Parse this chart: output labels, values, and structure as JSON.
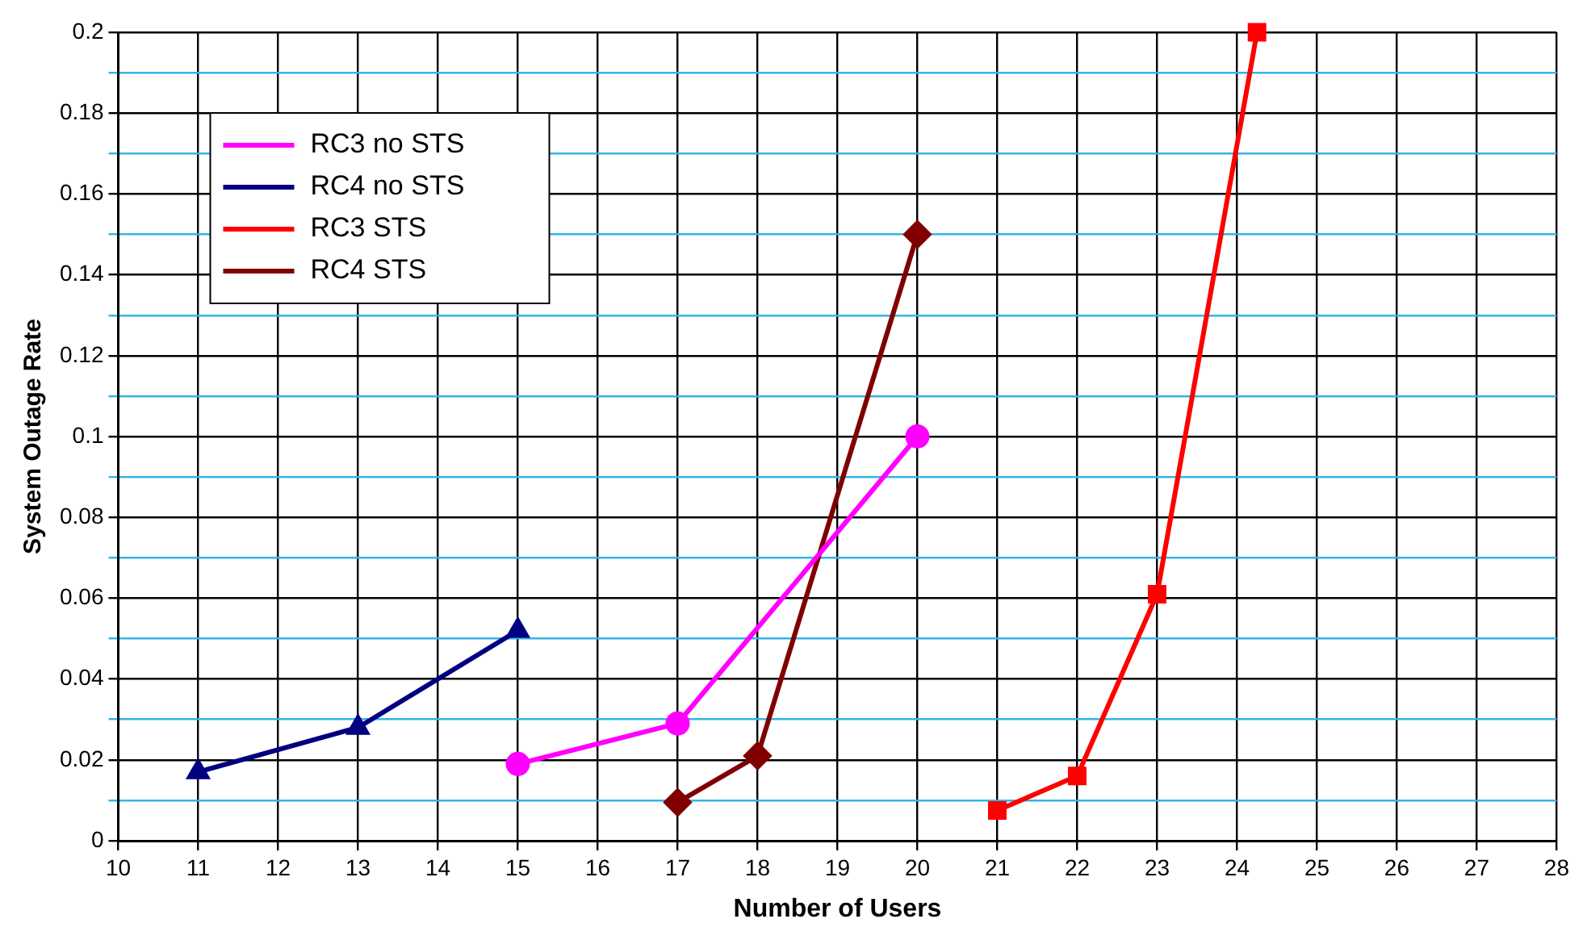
{
  "chart_data": {
    "type": "line",
    "xlabel": "Number of Users",
    "ylabel": "System Outage Rate",
    "xlim": [
      10,
      28
    ],
    "xticks": [
      10,
      11,
      12,
      13,
      14,
      15,
      16,
      17,
      18,
      19,
      20,
      21,
      22,
      23,
      24,
      25,
      26,
      27,
      28
    ],
    "ylim": [
      0,
      0.2
    ],
    "yticks": [
      0,
      {
        "value": 0.01,
        "label": null
      },
      0.02,
      {
        "value": 0.03,
        "label": null
      },
      0.04,
      {
        "value": 0.05,
        "label": null
      },
      0.06,
      {
        "value": 0.07,
        "label": null
      },
      0.08,
      {
        "value": 0.09,
        "label": null
      },
      0.1,
      {
        "value": 0.11,
        "label": null
      },
      0.12,
      {
        "value": 0.13,
        "label": null
      },
      0.14,
      {
        "value": 0.15,
        "label": null
      },
      0.16,
      {
        "value": 0.17,
        "label": null
      },
      0.18,
      {
        "value": 0.19,
        "label": null
      },
      0.2
    ],
    "grid": true,
    "legend": "top left",
    "line_style": "solid",
    "series": [
      {
        "name": "RC3 no STS",
        "color": "#ff00ff",
        "marker": "circle",
        "x": [
          15,
          17,
          20
        ],
        "values": [
          0.019,
          0.029,
          0.1
        ]
      },
      {
        "name": "RC4 no STS",
        "color": "#000080",
        "marker": "triangle",
        "x": [
          11,
          13,
          15
        ],
        "values": [
          0.017,
          0.028,
          0.052
        ]
      },
      {
        "name": "RC3 STS",
        "color": "#ff0000",
        "marker": "square",
        "x": [
          21,
          22,
          23,
          24.25
        ],
        "values": [
          0.0075,
          0.016,
          0.061,
          0.2
        ]
      },
      {
        "name": "RC4 STS",
        "color": "#800000",
        "marker": "diamond",
        "x": [
          17,
          18,
          20
        ],
        "values": [
          0.0095,
          0.021,
          0.15
        ]
      }
    ]
  }
}
